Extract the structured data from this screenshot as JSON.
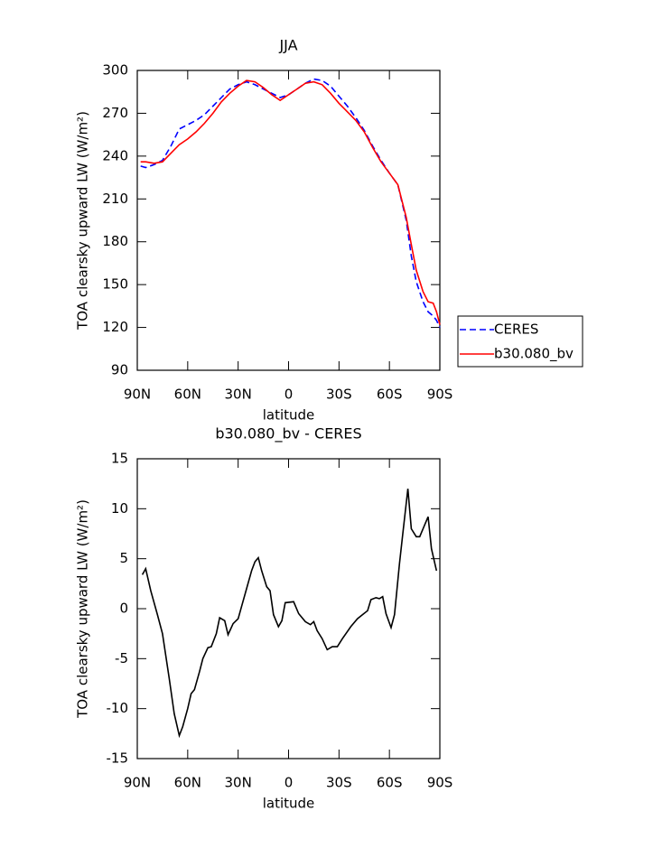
{
  "chart_data": [
    {
      "type": "line",
      "title": "JJA",
      "x_label": "latitude",
      "y_label": "TOA clearsky upward LW (W/m²)",
      "xlim": [
        90,
        -90
      ],
      "xticks": [
        {
          "value": 90,
          "label": "90N"
        },
        {
          "value": 60,
          "label": "60N"
        },
        {
          "value": 30,
          "label": "30N"
        },
        0,
        {
          "value": -30,
          "label": "30S"
        },
        {
          "value": -60,
          "label": "60S"
        },
        {
          "value": -90,
          "label": "90S"
        }
      ],
      "ylim": [
        90,
        300
      ],
      "yticks": [
        90,
        120,
        150,
        180,
        210,
        240,
        270,
        300
      ],
      "legend": "right",
      "series": [
        {
          "name": "CERES",
          "color": "#0000ff",
          "line_style": "dashed",
          "x": [
            88,
            85,
            80,
            75,
            70,
            65,
            60,
            55,
            50,
            45,
            40,
            35,
            30,
            25,
            20,
            15,
            10,
            5,
            0,
            -5,
            -10,
            -15,
            -20,
            -25,
            -30,
            -35,
            -40,
            -45,
            -50,
            -55,
            -60,
            -65,
            -70,
            -73,
            -76,
            -80,
            -83,
            -86,
            -88,
            -90
          ],
          "values": [
            233,
            232,
            234,
            237,
            247,
            259,
            262,
            265,
            269,
            275,
            281,
            287,
            290,
            292,
            290,
            287,
            284,
            281,
            283,
            287,
            291,
            294,
            293,
            289,
            282,
            275,
            267,
            258,
            247,
            237,
            228,
            220,
            195,
            170,
            152,
            138,
            131,
            128,
            125,
            120
          ]
        },
        {
          "name": "b30.080_bv",
          "color": "#ff0000",
          "line_style": "solid",
          "x": [
            88,
            85,
            80,
            75,
            70,
            65,
            60,
            55,
            50,
            45,
            40,
            35,
            30,
            25,
            20,
            15,
            10,
            5,
            0,
            -5,
            -10,
            -15,
            -20,
            -25,
            -30,
            -35,
            -40,
            -45,
            -50,
            -55,
            -60,
            -65,
            -70,
            -73,
            -76,
            -80,
            -83,
            -86,
            -88,
            -90
          ],
          "values": [
            236,
            236,
            235,
            236,
            242,
            248,
            252,
            257,
            263,
            270,
            278,
            284,
            289,
            293,
            292,
            288,
            283,
            279,
            283,
            287,
            291,
            292,
            290,
            284,
            277,
            271,
            265,
            257,
            246,
            236,
            228,
            220,
            197,
            178,
            160,
            145,
            138,
            137,
            131,
            122
          ]
        }
      ]
    },
    {
      "type": "line",
      "title": "b30.080_bv - CERES",
      "x_label": "latitude",
      "y_label": "TOA clearsky upward LW (W/m²)",
      "xlim": [
        90,
        -90
      ],
      "xticks": [
        {
          "value": 90,
          "label": "90N"
        },
        {
          "value": 60,
          "label": "60N"
        },
        {
          "value": 30,
          "label": "30N"
        },
        0,
        {
          "value": -30,
          "label": "30S"
        },
        {
          "value": -60,
          "label": "60S"
        },
        {
          "value": -90,
          "label": "90S"
        }
      ],
      "ylim": [
        -15,
        15
      ],
      "yticks": [
        -15,
        -10,
        -5,
        0,
        5,
        10,
        15
      ],
      "series": [
        {
          "color": "#000000",
          "line_style": "solid",
          "x": [
            87,
            85,
            82,
            78,
            75,
            71,
            68,
            65,
            63,
            60,
            58,
            56,
            53,
            51,
            48,
            46,
            43,
            41,
            38,
            36,
            33,
            30,
            28,
            25,
            22,
            20,
            18,
            16,
            13,
            11,
            9,
            6,
            4,
            2,
            -3,
            -6,
            -10,
            -13,
            -15,
            -17,
            -20,
            -23,
            -26,
            -29,
            -32,
            -37,
            -41,
            -44,
            -47,
            -49,
            -52,
            -54,
            -56,
            -58,
            -61,
            -63,
            -66,
            -68,
            -71,
            -73,
            -76,
            -78,
            -83,
            -85,
            -88
          ],
          "values": [
            3.4,
            4,
            1.8,
            -0.6,
            -2.5,
            -7,
            -10.5,
            -12.7,
            -11.8,
            -10,
            -8.5,
            -8.1,
            -6.3,
            -5,
            -3.9,
            -3.8,
            -2.5,
            -0.9,
            -1.2,
            -2.6,
            -1.5,
            -1,
            0.2,
            2,
            3.8,
            4.7,
            5.1,
            3.8,
            2.2,
            1.8,
            -0.6,
            -1.8,
            -1.2,
            0.6,
            0.7,
            -0.5,
            -1.3,
            -1.6,
            -1.3,
            -2.2,
            -3,
            -4.1,
            -3.8,
            -3.8,
            -3,
            -1.8,
            -1,
            -0.6,
            -0.2,
            0.9,
            1.1,
            1,
            1.2,
            -0.5,
            -1.9,
            -0.6,
            4.5,
            7.6,
            12,
            8,
            7.2,
            7.2,
            9.2,
            6,
            3.8
          ]
        }
      ]
    }
  ]
}
